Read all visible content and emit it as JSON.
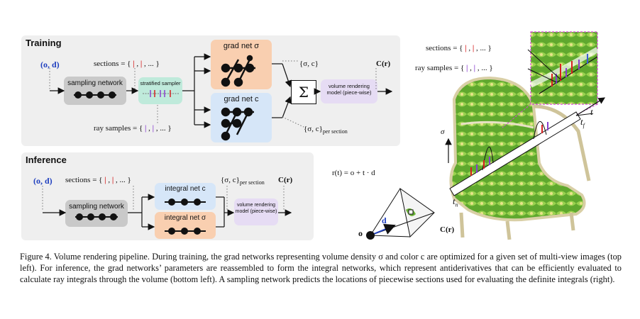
{
  "training": {
    "title": "Training",
    "input": "(o, d)",
    "sampling_network": "sampling network",
    "stratified_sampler": "stratified sampler",
    "sections_label": "sections = {",
    "sections_tail": ", ... }",
    "ray_samples_label": "ray samples = {",
    "ray_samples_tail": ", ... }",
    "grad_net_sigma": "grad net σ",
    "grad_net_c": "grad net c",
    "sum_symbol": "Σ",
    "sigma_c": "{σ, c}",
    "sigma_c_per_section": "{σ, c}",
    "per_section_sub": "per section",
    "volume_rendering": "volume rendering model (piece-wise)",
    "output": "C(r)"
  },
  "inference": {
    "title": "Inference",
    "input": "(o, d)",
    "sections_label": "sections = {",
    "sections_tail": ", ... }",
    "sampling_network": "sampling network",
    "integral_net_c": "integral net c",
    "integral_net_sigma": "integral net σ",
    "sigma_c_per_section": "{σ, c}",
    "per_section_sub": "per section",
    "volume_rendering": "volume rendering model (piece-wise)",
    "output": "C(r)"
  },
  "right": {
    "sections_label": "sections = {",
    "sections_tail": ", ... }",
    "ray_samples_label": "ray samples = {",
    "ray_samples_tail": ", ... }",
    "ray_eq": "r(t) = o + t · d",
    "sigma_axis": "σ",
    "t": "t",
    "t_f": "t",
    "t_f_sub": "f",
    "t_n": "t",
    "t_n_sub": "n",
    "o": "o",
    "d": "d",
    "C_r": "C(r)"
  },
  "colors": {
    "orange": "#f9cfb0",
    "blue": "#d6e6f8",
    "teal": "#bfeadb",
    "lavender": "#e6dcf4",
    "gray_node": "#c9c9c9",
    "panel": "#efefef",
    "red_tick": "#d62020",
    "purple_tick": "#8a3fcf",
    "input_blue": "#1f3fbf"
  },
  "caption": {
    "text": "Figure 4. Volume rendering pipeline. During training, the grad networks representing volume density σ and color c are optimized for a given set of multi-view images (top left). For inference, the grad networks’ parameters are reassembled to form the integral networks, which represent antiderivatives that can be efficiently evaluated to calculate ray integrals through the volume (bottom left). A sampling network predicts the locations of piecewise sections used for evaluating the definite integrals (right)."
  }
}
